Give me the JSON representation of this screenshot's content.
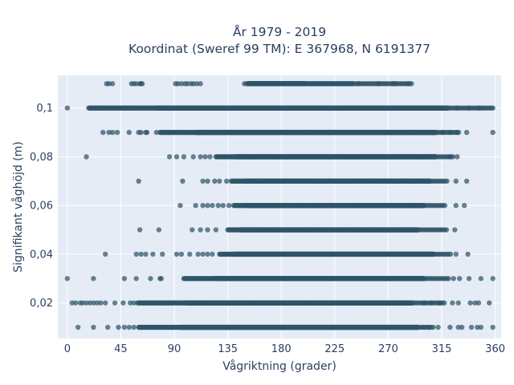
{
  "chart_data": {
    "type": "scatter",
    "title_lines": [
      "År 1979 - 2019",
      "Koordinat (Sweref 99 TM): E 367968, N 6191377"
    ],
    "xlabel": "Vågriktning (grader)",
    "ylabel": "Signifikant våghöjd (m)",
    "xlim": [
      -8,
      365
    ],
    "ylim": [
      0.0054,
      0.1134
    ],
    "x_ticks": [
      0,
      45,
      90,
      135,
      180,
      225,
      270,
      315,
      360
    ],
    "x_tick_labels": [
      "0",
      "45",
      "90",
      "135",
      "180",
      "225",
      "270",
      "315",
      "360"
    ],
    "y_ticks": [
      0.02,
      0.04,
      0.06,
      0.08,
      0.1
    ],
    "y_tick_labels": [
      "0,02",
      "0,04",
      "0,06",
      "0,08",
      "0,1"
    ],
    "grid": true,
    "marker_color": "#2f5468",
    "plot_background": "#e5ecf6",
    "series": [
      {
        "rows": [
          {
            "y": 0.11,
            "dense": [
              152,
              200
            ],
            "medium": [
              200,
              240
            ],
            "sparse": [
              240,
              290
            ],
            "points": [
              33,
              35,
              38,
              54,
              56,
              58,
              61,
              62,
              63,
              91,
              93,
              96,
              99,
              101,
              104,
              106,
              109,
              112,
              149,
              151,
              245,
              262,
              274,
              276,
              287
            ]
          },
          {
            "y": 0.1,
            "dense": [
              75,
              320
            ],
            "medium": [
              18,
              75
            ],
            "sparse": [
              320,
              358
            ],
            "points": [
              0,
              20,
              25,
              30,
              48,
              55,
              64,
              328,
              338,
              346,
              358
            ]
          },
          {
            "y": 0.09,
            "dense": [
              108,
              310
            ],
            "medium": [
              78,
              108
            ],
            "sparse": [
              310,
              330
            ],
            "points": [
              30,
              35,
              38,
              42,
              52,
              60,
              62,
              66,
              67,
              75,
              316,
              322,
              328,
              336,
              358
            ]
          },
          {
            "y": 0.08,
            "dense": [
              142,
              310
            ],
            "medium": [
              125,
              142
            ],
            "sparse": [
              310,
              325
            ],
            "points": [
              16,
              86,
              92,
              98,
              106,
              112,
              116,
              120,
              322,
              328
            ]
          },
          {
            "y": 0.07,
            "dense": [
              150,
              305
            ],
            "medium": [
              138,
              150
            ],
            "sparse": [
              305,
              320
            ],
            "points": [
              60,
              97,
              114,
              118,
              124,
              128,
              134,
              327,
              336
            ]
          },
          {
            "y": 0.06,
            "dense": [
              150,
              300
            ],
            "medium": [
              140,
              150
            ],
            "sparse": [
              300,
              318
            ],
            "points": [
              95,
              108,
              114,
              118,
              122,
              127,
              131,
              136,
              327,
              334
            ]
          },
          {
            "y": 0.05,
            "dense": [
              145,
              295
            ],
            "medium": [
              135,
              145
            ],
            "sparse": [
              295,
              320
            ],
            "points": [
              61,
              77,
              105,
              112,
              118,
              125,
              326
            ]
          },
          {
            "y": 0.04,
            "dense": [
              140,
              308
            ],
            "medium": [
              128,
              140
            ],
            "sparse": [
              308,
              323
            ],
            "points": [
              32,
              58,
              62,
              66,
              72,
              80,
              92,
              96,
              103,
              110,
              114,
              118,
              122,
              327,
              337
            ]
          },
          {
            "y": 0.03,
            "dense": [
              124,
              300
            ],
            "medium": [
              98,
              124
            ],
            "sparse": [
              300,
              322
            ],
            "points": [
              0,
              22,
              48,
              58,
              70,
              78,
              79,
              325,
              330,
              338,
              348,
              358
            ]
          },
          {
            "y": 0.02,
            "dense": [
              100,
              290
            ],
            "medium": [
              60,
              100
            ],
            "sparse": [
              290,
              318
            ],
            "points": [
              4,
              7,
              11,
              13,
              16,
              19,
              22,
              25,
              28,
              32,
              40,
              47,
              53,
              56,
              59,
              64,
              70,
              74,
              78,
              84,
              88,
              300,
              306,
              313,
              324,
              329,
              339,
              343,
              346,
              355
            ]
          },
          {
            "y": 0.01,
            "dense": [
              95,
              295
            ],
            "medium": [
              60,
              95
            ],
            "sparse": [
              295,
              308
            ],
            "points": [
              9,
              22,
              34,
              43,
              48,
              52,
              56,
              62,
              70,
              76,
              82,
              88,
              300,
              304,
              312,
              322,
              329,
              332,
              340,
              345,
              348,
              358
            ]
          }
        ]
      }
    ]
  }
}
